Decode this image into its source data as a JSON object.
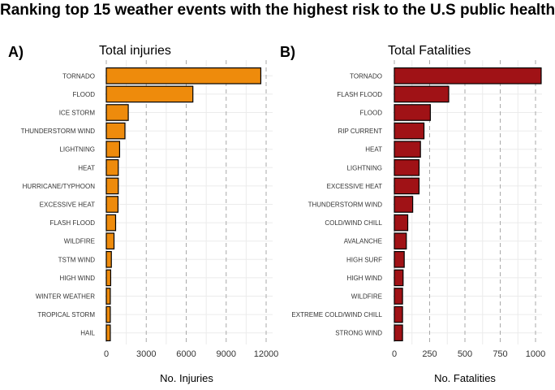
{
  "title": "Ranking top 15 weather events with the highest risk to the U.S public health",
  "chart_data": [
    {
      "type": "bar",
      "orientation": "horizontal",
      "panel": "A)",
      "title": "Total injuries",
      "xlabel": "No. Injuries",
      "ylabel": "",
      "xlim": [
        0,
        12000
      ],
      "xticks": [
        0,
        3000,
        6000,
        9000,
        12000
      ],
      "color": "#EE8B0C",
      "categories": [
        "TORNADO",
        "FLOOD",
        "ICE STORM",
        "THUNDERSTORM WIND",
        "LIGHTNING",
        "HEAT",
        "HURRICANE/TYPHOON",
        "EXCESSIVE HEAT",
        "FLASH FLOOD",
        "WILDFIRE",
        "TSTM WIND",
        "HIGH WIND",
        "WINTER WEATHER",
        "TROPICAL STORM",
        "HAIL"
      ],
      "values": [
        11600,
        6500,
        1650,
        1400,
        1000,
        900,
        900,
        880,
        700,
        580,
        380,
        330,
        300,
        300,
        300
      ],
      "grid": true
    },
    {
      "type": "bar",
      "orientation": "horizontal",
      "panel": "B)",
      "title": "Total Fatalities",
      "xlabel": "No. Fatalities",
      "ylabel": "",
      "xlim": [
        0,
        1000
      ],
      "xticks": [
        0,
        250,
        500,
        750,
        1000
      ],
      "color": "#A01216",
      "categories": [
        "TORNADO",
        "FLASH FLOOD",
        "FLOOD",
        "RIP CURRENT",
        "HEAT",
        "LIGHTNING",
        "EXCESSIVE HEAT",
        "THUNDERSTORM WIND",
        "COLD/WIND CHILL",
        "AVALANCHE",
        "HIGH SURF",
        "HIGH WIND",
        "WILDFIRE",
        "EXTREME COLD/WIND CHILL",
        "STRONG WIND"
      ],
      "values": [
        1040,
        385,
        255,
        210,
        185,
        175,
        175,
        130,
        95,
        85,
        70,
        62,
        58,
        58,
        58
      ],
      "grid": true
    }
  ]
}
